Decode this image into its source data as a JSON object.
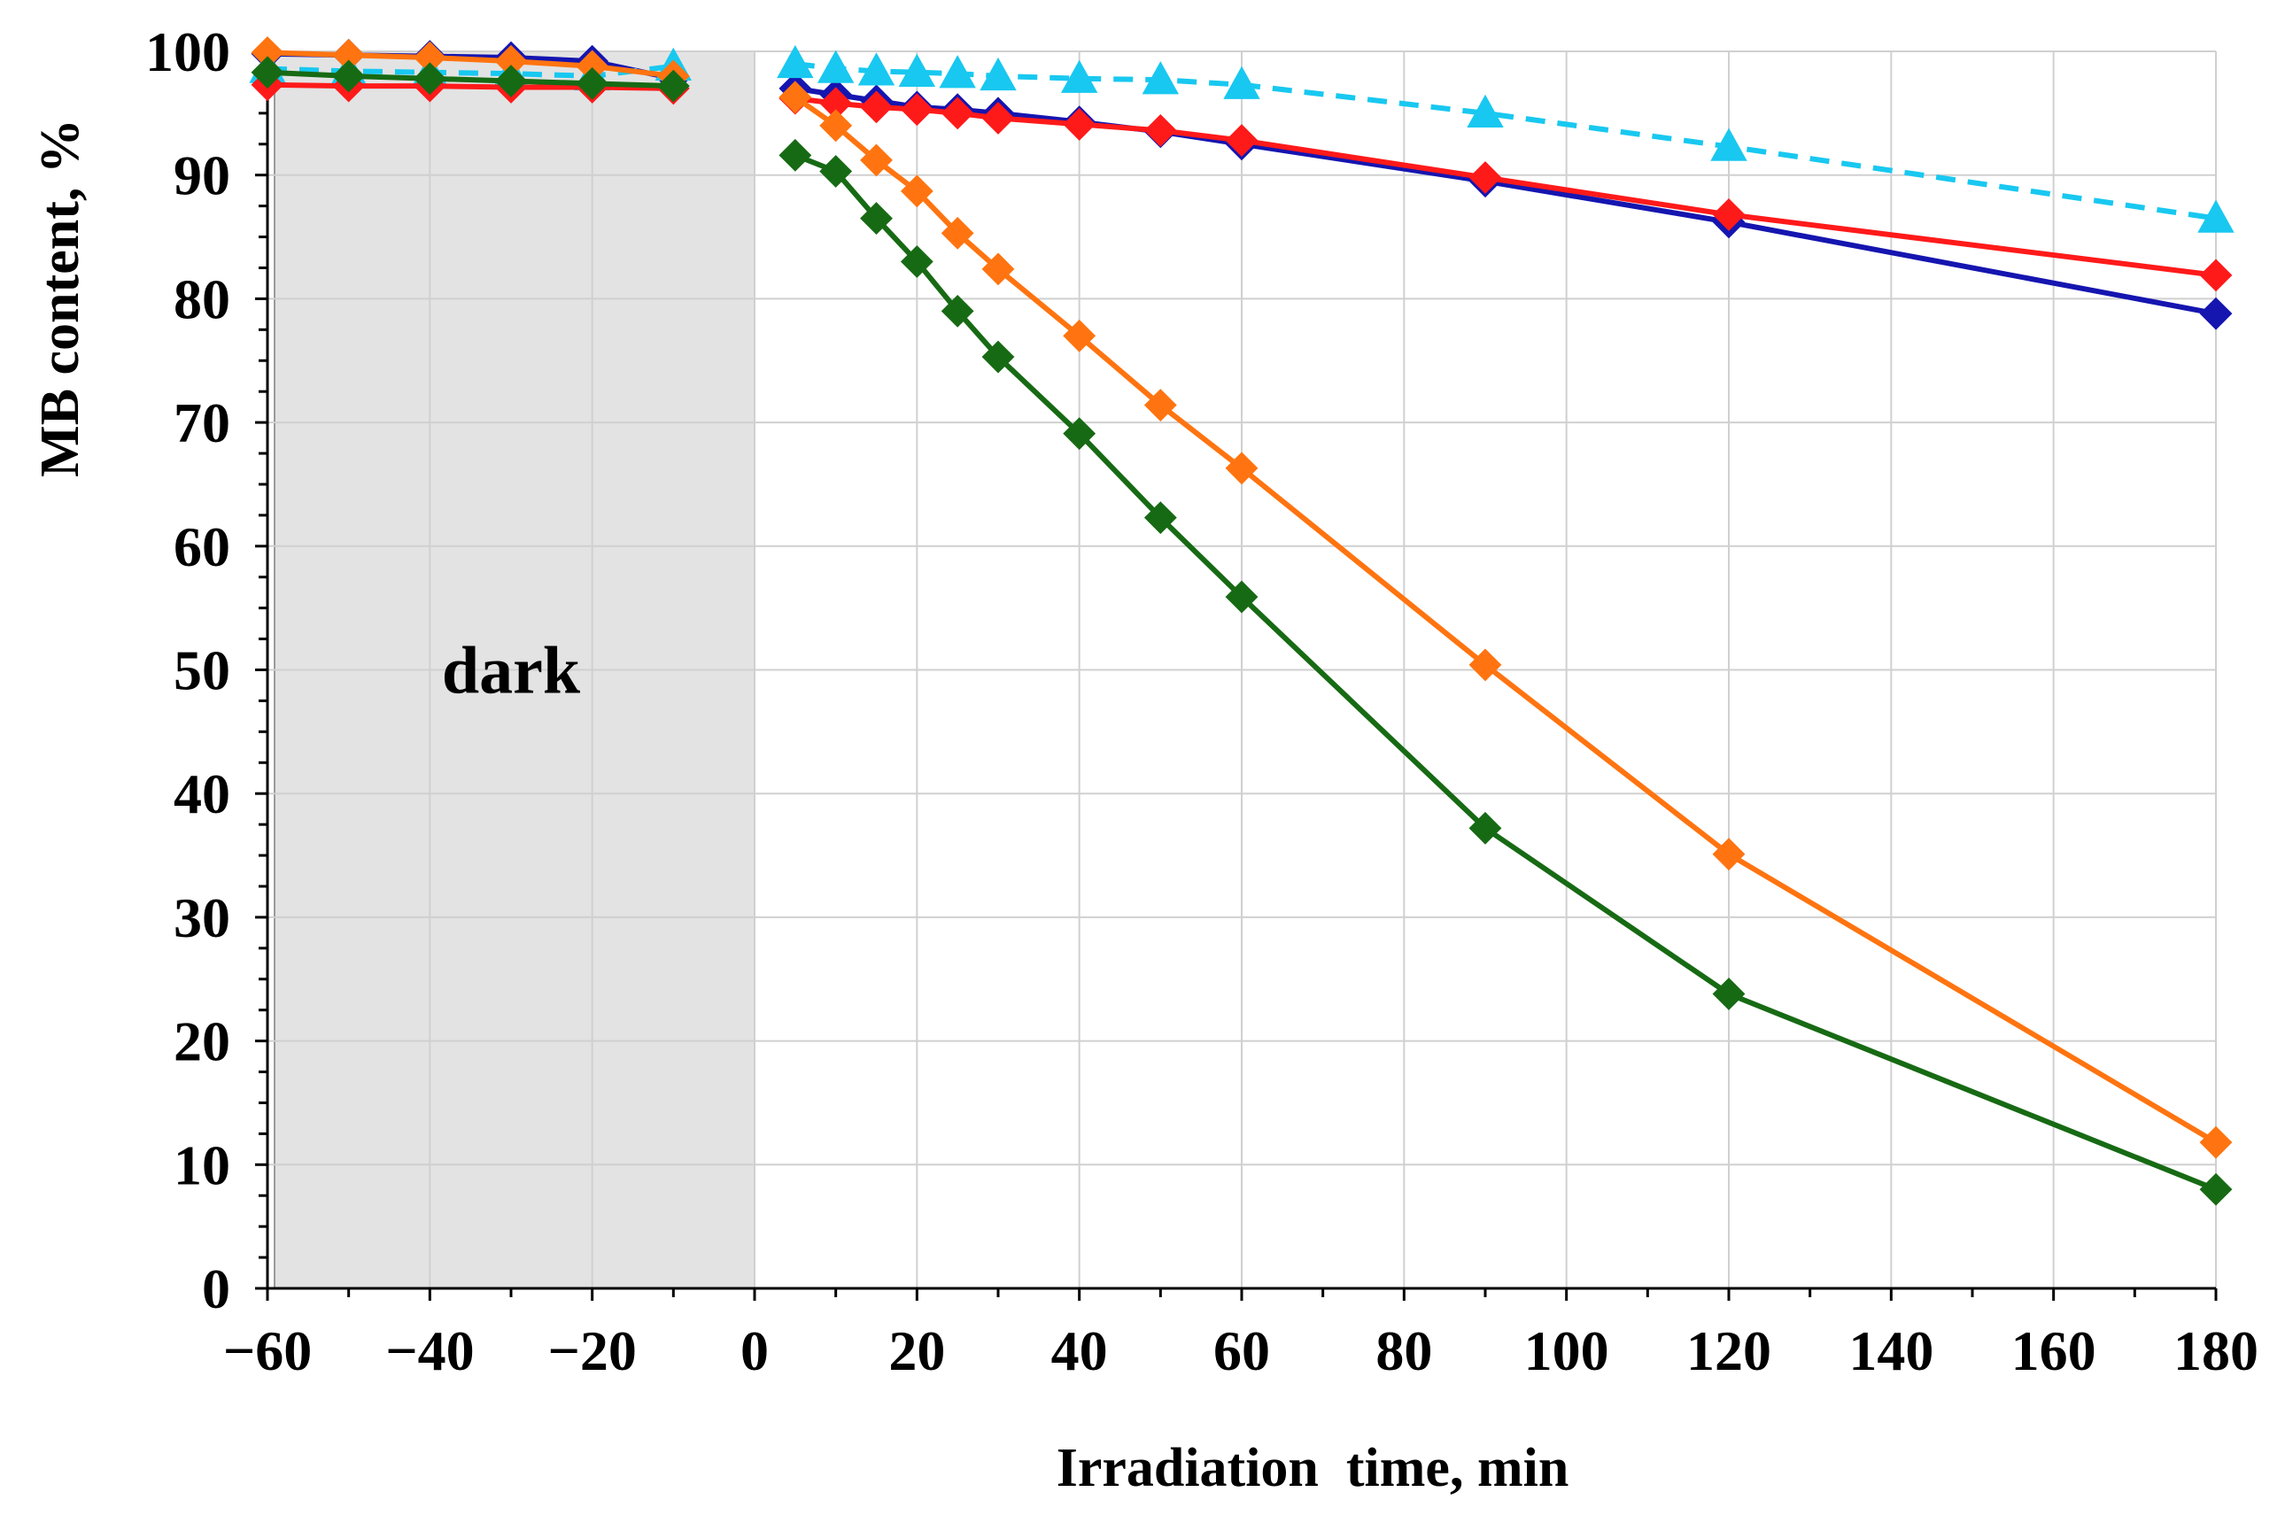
{
  "chart_data": {
    "type": "line",
    "title": "",
    "xlabel": "Irradiation  time, min",
    "ylabel": "MB content, %",
    "xlim": [
      -60,
      180
    ],
    "ylim": [
      0,
      100
    ],
    "x_ticks": [
      -60,
      -40,
      -20,
      0,
      20,
      40,
      60,
      80,
      100,
      120,
      140,
      160,
      180
    ],
    "x_tick_labels": [
      "−60",
      "−40",
      "−20",
      "0",
      "20",
      "40",
      "60",
      "80",
      "100",
      "120",
      "140",
      "160",
      "180"
    ],
    "y_ticks": [
      0,
      10,
      20,
      30,
      40,
      50,
      60,
      70,
      80,
      90,
      100
    ],
    "y_tick_labels": [
      "0",
      "10",
      "20",
      "30",
      "40",
      "50",
      "60",
      "70",
      "80",
      "90",
      "100"
    ],
    "grid": true,
    "legend": "none",
    "dark_region": {
      "x_from": -60,
      "x_to": 0,
      "label": "dark",
      "color": "#e3e3e3"
    },
    "series": [
      {
        "name": "blue",
        "color": "#1515b0",
        "marker": "diamond",
        "dashed": false,
        "segments": [
          {
            "x": [
              -60,
              -50,
              -40,
              -30,
              -20,
              -10
            ],
            "y": [
              99.8,
              99.7,
              99.6,
              99.5,
              99.2,
              97.8
            ]
          },
          {
            "x": [
              5,
              10,
              15,
              20,
              25,
              30,
              40,
              50,
              60,
              90,
              120,
              180
            ],
            "y": [
              97.0,
              96.5,
              96.0,
              95.5,
              95.3,
              95.0,
              94.3,
              93.5,
              92.5,
              89.5,
              86.2,
              78.8
            ]
          }
        ]
      },
      {
        "name": "cyan",
        "color": "#18c8f0",
        "marker": "triangle",
        "dashed": true,
        "segments": [
          {
            "x": [
              -60,
              -50,
              -40,
              -30,
              -20,
              -10
            ],
            "y": [
              98.6,
              98.4,
              98.3,
              98.2,
              98.0,
              98.8
            ]
          },
          {
            "x": [
              5,
              10,
              15,
              20,
              25,
              30,
              40,
              50,
              60,
              90,
              120,
              180
            ],
            "y": [
              99.0,
              98.6,
              98.4,
              98.3,
              98.2,
              98.0,
              97.8,
              97.7,
              97.3,
              95.0,
              92.3,
              86.5
            ]
          }
        ]
      },
      {
        "name": "red",
        "color": "#ff1a1a",
        "marker": "diamond",
        "dashed": false,
        "segments": [
          {
            "x": [
              -60,
              -50,
              -40,
              -30,
              -20,
              -10
            ],
            "y": [
              97.3,
              97.2,
              97.2,
              97.1,
              97.1,
              97.0
            ]
          },
          {
            "x": [
              5,
              10,
              15,
              20,
              25,
              30,
              40,
              50,
              60,
              90,
              120,
              180
            ],
            "y": [
              96.2,
              95.8,
              95.5,
              95.3,
              95.0,
              94.6,
              94.1,
              93.6,
              92.8,
              89.8,
              86.8,
              81.9
            ]
          }
        ]
      },
      {
        "name": "orange",
        "color": "#ff7410",
        "marker": "diamond",
        "dashed": false,
        "segments": [
          {
            "x": [
              -60,
              -50,
              -40,
              -30,
              -20,
              -10
            ],
            "y": [
              99.9,
              99.7,
              99.5,
              99.2,
              98.8,
              98.0
            ]
          },
          {
            "x": [
              5,
              10,
              15,
              20,
              25,
              30,
              40,
              50,
              60,
              90,
              120,
              180
            ],
            "y": [
              96.3,
              94.0,
              91.2,
              88.7,
              85.3,
              82.4,
              77.0,
              71.4,
              66.3,
              50.4,
              35.1,
              11.8
            ]
          }
        ]
      },
      {
        "name": "green",
        "color": "#176a14",
        "marker": "diamond",
        "dashed": false,
        "segments": [
          {
            "x": [
              -60,
              -50,
              -40,
              -30,
              -20,
              -10
            ],
            "y": [
              98.3,
              98.0,
              97.8,
              97.6,
              97.4,
              97.2
            ]
          },
          {
            "x": [
              5,
              10,
              15,
              20,
              25,
              30,
              40,
              50,
              60,
              90,
              120,
              180
            ],
            "y": [
              91.6,
              90.3,
              86.5,
              83.0,
              79.0,
              75.3,
              69.1,
              62.3,
              55.9,
              37.2,
              23.8,
              8.0
            ]
          }
        ]
      }
    ]
  }
}
